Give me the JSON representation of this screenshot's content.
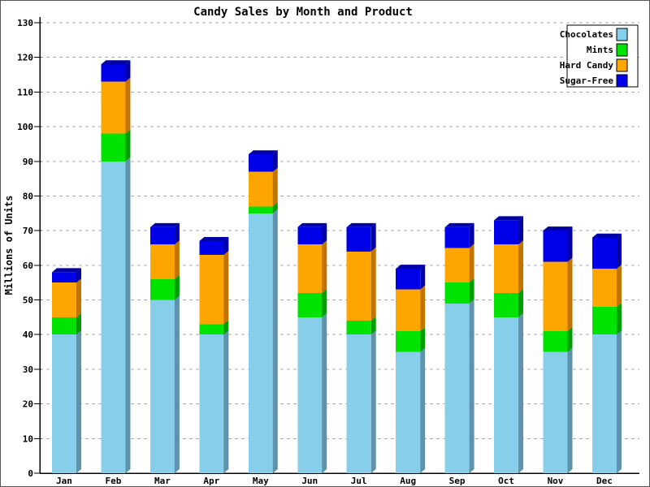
{
  "chart_data": {
    "type": "bar",
    "stacked": true,
    "pseudo_3d": true,
    "title": "Candy Sales by Month and Product",
    "ylabel": "Millions of Units",
    "xlabel": "",
    "ylim": [
      0,
      130
    ],
    "ytick_step": 10,
    "ytick_labels": [
      "0",
      "10",
      "20",
      "30",
      "40",
      "50",
      "60",
      "70",
      "80",
      "90",
      "100",
      "110",
      "120",
      "130"
    ],
    "grid": "horizontal-dashed",
    "legend_position": "top-right",
    "categories": [
      "Jan",
      "Feb",
      "Mar",
      "Apr",
      "May",
      "Jun",
      "Jul",
      "Aug",
      "Sep",
      "Oct",
      "Nov",
      "Dec"
    ],
    "series": [
      {
        "name": "Chocolates",
        "color": "#87CEEB",
        "shade_color": "#5E93AB",
        "values": [
          40,
          90,
          50,
          40,
          75,
          45,
          40,
          35,
          49,
          45,
          35,
          40
        ]
      },
      {
        "name": "Mints",
        "color": "#00E300",
        "shade_color": "#009E00",
        "values": [
          5,
          8,
          6,
          3,
          2,
          7,
          4,
          6,
          6,
          7,
          6,
          8
        ]
      },
      {
        "name": "Hard Candy",
        "color": "#FFA500",
        "shade_color": "#C27400",
        "values": [
          10,
          15,
          10,
          20,
          10,
          14,
          20,
          12,
          10,
          14,
          20,
          11
        ]
      },
      {
        "name": "Sugar-Free",
        "color": "#0000E8",
        "shade_color": "#0000A6",
        "values": [
          3,
          5,
          5,
          4,
          5,
          5,
          7,
          6,
          6,
          7,
          9,
          9
        ]
      }
    ],
    "totals": [
      58,
      118,
      71,
      67,
      92,
      71,
      71,
      59,
      71,
      73,
      70,
      68
    ]
  },
  "legend": {
    "items": [
      "Chocolates",
      "Mints",
      "Hard Candy",
      "Sugar-Free"
    ]
  },
  "colors": {
    "background": "#FFFFFF",
    "grid": "#AAAAAA",
    "axis": "#000000",
    "legend_border": "#000000",
    "frame_border": "#555555"
  }
}
